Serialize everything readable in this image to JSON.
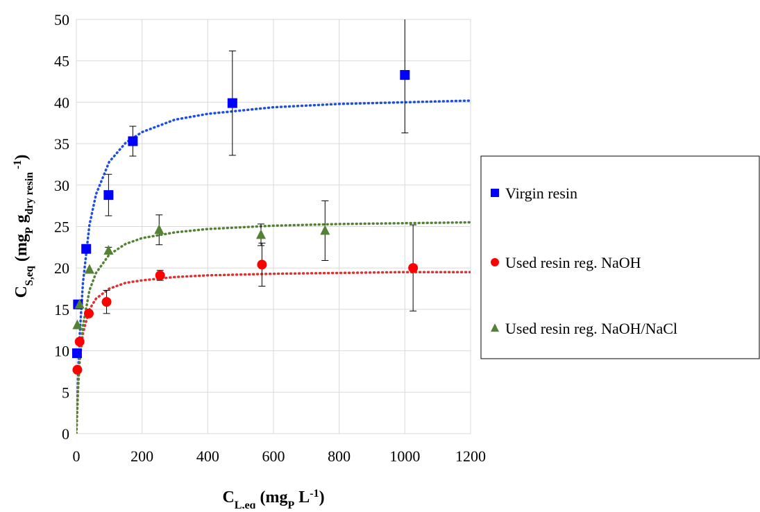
{
  "chart_data": {
    "type": "scatter",
    "x_label": [
      {
        "text": "C",
        "shift": "none"
      },
      {
        "text": "L,eq",
        "shift": "sub"
      },
      {
        "text": " (mg",
        "shift": "none"
      },
      {
        "text": "P",
        "shift": "sub"
      },
      {
        "text": " L",
        "shift": "none"
      },
      {
        "text": "-1",
        "shift": "super"
      },
      {
        "text": ")",
        "shift": "none"
      }
    ],
    "y_label": [
      {
        "text": "C",
        "shift": "none"
      },
      {
        "text": "S,eq",
        "shift": "sub"
      },
      {
        "text": " (mg",
        "shift": "none"
      },
      {
        "text": "P",
        "shift": "sub"
      },
      {
        "text": " g",
        "shift": "none"
      },
      {
        "text": "dry resin",
        "shift": "sub"
      },
      {
        "text": " -1",
        "shift": "super"
      },
      {
        "text": ")",
        "shift": "none"
      }
    ],
    "xlim": [
      0,
      1200
    ],
    "xticks": [
      0,
      200,
      400,
      600,
      800,
      1000,
      1200
    ],
    "ylim": [
      0,
      50
    ],
    "yticks": [
      0,
      5,
      10,
      15,
      20,
      25,
      30,
      35,
      40,
      45,
      50
    ],
    "grid": true,
    "legend": "right",
    "fit_x": [
      0,
      5,
      10,
      20,
      40,
      60,
      100,
      150,
      200,
      300,
      400,
      600,
      800,
      1000,
      1200
    ],
    "series": [
      {
        "name": "Virgin resin",
        "color": "#0000ff",
        "marker": "square",
        "x": [
          2,
          5,
          30,
          98,
          172,
          475,
          1000
        ],
        "values": [
          9.7,
          15.6,
          22.3,
          28.8,
          35.3,
          39.9,
          43.3
        ],
        "errors": [
          null,
          null,
          null,
          2.5,
          1.8,
          6.3,
          7.0
        ],
        "fit_color": "#1f4fe0",
        "fit_values": [
          0,
          6.8,
          11.7,
          18.2,
          25.2,
          28.9,
          32.8,
          35.1,
          36.4,
          37.9,
          38.6,
          39.4,
          39.8,
          40.0,
          40.2
        ]
      },
      {
        "name": "Used resin reg. NaOH",
        "color": "#ff0000",
        "marker": "circle",
        "x": [
          3,
          10,
          38,
          92,
          255,
          565,
          1025
        ],
        "values": [
          7.7,
          11.1,
          14.5,
          15.9,
          19.1,
          20.4,
          20.0
        ],
        "errors": [
          null,
          null,
          null,
          1.4,
          0.6,
          2.6,
          5.2
        ],
        "fit_color": "#e03030",
        "fit_values": [
          0,
          5.6,
          8.8,
          12.1,
          15.0,
          16.3,
          17.5,
          18.2,
          18.5,
          18.9,
          19.1,
          19.3,
          19.4,
          19.5,
          19.5
        ]
      },
      {
        "name": "Used resin reg. NaOH/NaCl",
        "color": "#548235",
        "marker": "triangle",
        "x": [
          3,
          10,
          40,
          98,
          252,
          562,
          757
        ],
        "values": [
          13.1,
          15.6,
          19.8,
          22.1,
          24.6,
          24.0,
          24.5
        ],
        "errors": [
          null,
          null,
          null,
          0.4,
          1.8,
          1.3,
          3.6
        ],
        "fit_color": "#548235",
        "fit_values": [
          0,
          5.2,
          8.6,
          13.0,
          17.3,
          19.4,
          21.6,
          22.9,
          23.6,
          24.3,
          24.7,
          25.1,
          25.3,
          25.4,
          25.5
        ]
      }
    ]
  }
}
